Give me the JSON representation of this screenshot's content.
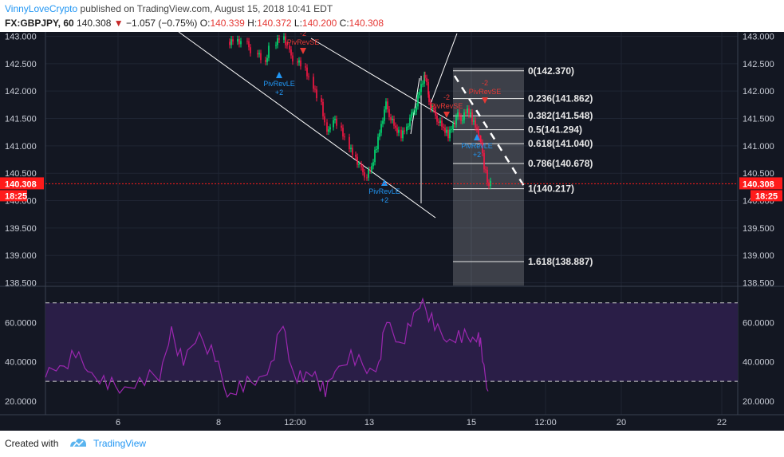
{
  "header": {
    "author": "VinnyLoveCrypto",
    "published_text": "published on TradingView.com, August 15, 2018 10:41 EDT",
    "symbol": "FX:GBPJPY, 60",
    "last": "140.308",
    "change": "−1.057 (−0.75%)",
    "o_label": "O:",
    "o_value": "140.339",
    "h_label": "H:",
    "h_value": "140.372",
    "l_label": "L:",
    "l_value": "140.200",
    "c_label": "C:",
    "c_value": "140.308"
  },
  "footer": {
    "created_with": "Created with",
    "brand": "TradingView"
  },
  "colors": {
    "up": "#00e676",
    "down": "#ff1744",
    "background": "#131722",
    "rsi_band": "#2a1e47",
    "rsi_line": "#9c27b0",
    "price_tag": "#ff1b1b"
  },
  "chart_data": {
    "type": "candlestick",
    "price_axis": {
      "ylim": [
        138.45,
        143.08
      ],
      "ticks": [
        "143.000",
        "142.500",
        "142.000",
        "141.500",
        "141.000",
        "140.500",
        "140.000",
        "139.500",
        "139.000",
        "138.500"
      ]
    },
    "time_axis": {
      "ticks": [
        "6",
        "8",
        "12:00",
        "13",
        "15",
        "12:00",
        "20",
        "22"
      ]
    },
    "last_price_label": "140.308",
    "countdown_label": "18:25",
    "fib_levels": [
      {
        "label": "0(142.370)",
        "price": 142.37
      },
      {
        "label": "0.236(141.862)",
        "price": 141.862
      },
      {
        "label": "0.382(141.548)",
        "price": 141.548
      },
      {
        "label": "0.5(141.294)",
        "price": 141.294
      },
      {
        "label": "0.618(141.040)",
        "price": 141.04
      },
      {
        "label": "0.786(140.678)",
        "price": 140.678
      },
      {
        "label": "1(140.217)",
        "price": 140.217
      },
      {
        "label": "1.618(138.887)",
        "price": 138.887
      }
    ],
    "signals": [
      {
        "text": "PivRevSE",
        "count": "-2",
        "type": "down",
        "price": 143.0,
        "bar": 0.3
      },
      {
        "text": "PivRevLE",
        "count": "+2",
        "type": "up",
        "price": 142.42,
        "bar": 0.26
      },
      {
        "text": "PivRevLE",
        "count": "+2",
        "type": "up",
        "price": 140.45,
        "bar": 0.425
      },
      {
        "text": "PivRevSE",
        "count": "-2",
        "type": "down",
        "price": 141.8,
        "bar": 0.66
      },
      {
        "text": "PivRevSE",
        "count": "-2",
        "type": "down",
        "price": 141.75,
        "bar": 0.57
      },
      {
        "text": "PivRevLE",
        "count": "+2",
        "type": "up",
        "price": 141.1,
        "bar": 0.63
      }
    ],
    "rsi": {
      "ticks": [
        "60.0000",
        "40.0000",
        "20.0000"
      ],
      "ylim": [
        13,
        78
      ],
      "upper_band": 70,
      "lower_band": 30
    }
  }
}
